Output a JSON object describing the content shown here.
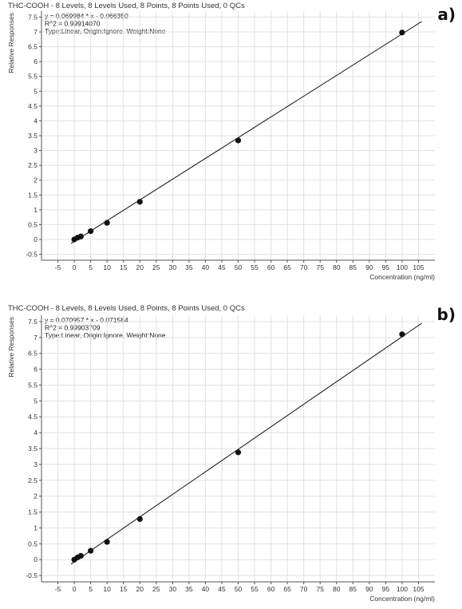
{
  "chart_data": [
    {
      "type": "scatter",
      "panel_label": "a)",
      "title": "THC-COOH - 8 Levels, 8 Levels Used, 8 Points, 8 Points Used, 0 QCs",
      "equation": "y = 0.069984 * x - 0.066350",
      "r2": "R^2 = 0.99914070",
      "fit_info": "Type:Linear, Origin:Ignore, Weight:None",
      "xlabel": "Concentration (ng/ml)",
      "ylabel": "Relative Responses",
      "xlim": [
        -10,
        110
      ],
      "ylim": [
        -0.7,
        7.7
      ],
      "x_ticks": [
        -5,
        0,
        5,
        10,
        15,
        20,
        25,
        30,
        35,
        40,
        45,
        50,
        55,
        60,
        65,
        70,
        75,
        80,
        85,
        90,
        95,
        100,
        105
      ],
      "y_ticks": [
        -0.5,
        0,
        0.5,
        1,
        1.5,
        2,
        2.5,
        3,
        3.5,
        4,
        4.5,
        5,
        5.5,
        6,
        6.5,
        7,
        7.5
      ],
      "grid": true,
      "series": [
        {
          "x": [
            0,
            1,
            2,
            5,
            10,
            20,
            50,
            100
          ],
          "y": [
            0.0,
            0.06,
            0.1,
            0.28,
            0.56,
            1.27,
            3.34,
            6.98
          ]
        }
      ],
      "fit": {
        "slope": 0.069984,
        "intercept": -0.06635
      }
    },
    {
      "type": "scatter",
      "panel_label": "b)",
      "title": "THC-COOH - 8 Levels, 8 Levels Used, 8 Points, 8 Points Used, 0 QCs",
      "equation": "y = 0.070957 * x - 0.071584",
      "r2": "R^2 = 0.99903709",
      "fit_info": "Type:Linear, Origin:Ignore, Weight:None",
      "xlabel": "Concentration (ng/ml)",
      "ylabel": "Relative Responses",
      "xlim": [
        -10,
        110
      ],
      "ylim": [
        -0.7,
        7.7
      ],
      "x_ticks": [
        -5,
        0,
        5,
        10,
        15,
        20,
        25,
        30,
        35,
        40,
        45,
        50,
        55,
        60,
        65,
        70,
        75,
        80,
        85,
        90,
        95,
        100,
        105
      ],
      "y_ticks": [
        -0.5,
        0,
        0.5,
        1,
        1.5,
        2,
        2.5,
        3,
        3.5,
        4,
        4.5,
        5,
        5.5,
        6,
        6.5,
        7,
        7.5
      ],
      "grid": true,
      "series": [
        {
          "x": [
            0,
            1,
            2,
            5,
            10,
            20,
            50,
            100
          ],
          "y": [
            0.0,
            0.07,
            0.12,
            0.28,
            0.56,
            1.28,
            3.38,
            7.1
          ]
        }
      ],
      "fit": {
        "slope": 0.070957,
        "intercept": -0.071584
      }
    }
  ]
}
